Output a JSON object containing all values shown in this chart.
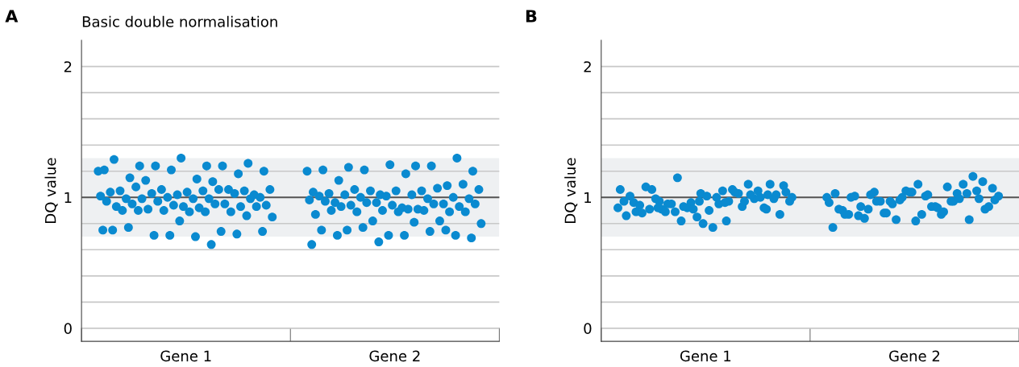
{
  "chart_data": [
    {
      "type": "scatter",
      "title": "Basic double normalisation",
      "ylabel": "DQ value",
      "annotations": [
        "A"
      ],
      "categories": [
        "Gene 1",
        "Gene 2"
      ],
      "ylim": [
        -0.1,
        2.2
      ],
      "yticks": [
        {
          "value": 0,
          "label": "0"
        },
        {
          "value": 0.2,
          "label": null
        },
        {
          "value": 0.4,
          "label": null
        },
        {
          "value": 0.6,
          "label": null
        },
        {
          "value": 0.8,
          "label": null
        },
        {
          "value": 1,
          "label": "1"
        },
        {
          "value": 1.2,
          "label": null
        },
        {
          "value": 1.4,
          "label": null
        },
        {
          "value": 1.6,
          "label": null
        },
        {
          "value": 1.8,
          "label": null
        },
        {
          "value": 2,
          "label": "2"
        }
      ],
      "grid": "y",
      "marker": "circle",
      "bands": [
        {
          "axis": "y",
          "from": 0.7,
          "to": 1.3,
          "color": "#eef0f2"
        }
      ],
      "ref_lines": [
        {
          "axis": "y",
          "value": 1,
          "color": "#555555"
        }
      ],
      "series": [
        {
          "color": "#0a8ad0",
          "x": [
            "Gene 1",
            "Gene 1",
            "Gene 1",
            "Gene 1",
            "Gene 1",
            "Gene 1",
            "Gene 1",
            "Gene 1",
            "Gene 1",
            "Gene 1",
            "Gene 1",
            "Gene 1",
            "Gene 1",
            "Gene 1",
            "Gene 1",
            "Gene 1",
            "Gene 1",
            "Gene 1",
            "Gene 1",
            "Gene 1",
            "Gene 1",
            "Gene 1",
            "Gene 1",
            "Gene 1",
            "Gene 1",
            "Gene 1",
            "Gene 1",
            "Gene 1",
            "Gene 1",
            "Gene 1",
            "Gene 1",
            "Gene 1",
            "Gene 1",
            "Gene 1",
            "Gene 1",
            "Gene 1",
            "Gene 1",
            "Gene 1",
            "Gene 1",
            "Gene 1",
            "Gene 1",
            "Gene 1",
            "Gene 1",
            "Gene 1",
            "Gene 1",
            "Gene 1",
            "Gene 1",
            "Gene 1",
            "Gene 1",
            "Gene 1",
            "Gene 1",
            "Gene 1",
            "Gene 1",
            "Gene 1",
            "Gene 1",
            "Gene 1",
            "Gene 1",
            "Gene 1",
            "Gene 1",
            "Gene 1",
            "Gene 1",
            "Gene 1",
            "Gene 1",
            "Gene 1",
            "Gene 1",
            "Gene 1",
            "Gene 1",
            "Gene 1",
            "Gene 1",
            "Gene 1",
            "Gene 2",
            "Gene 2",
            "Gene 2",
            "Gene 2",
            "Gene 2",
            "Gene 2",
            "Gene 2",
            "Gene 2",
            "Gene 2",
            "Gene 2",
            "Gene 2",
            "Gene 2",
            "Gene 2",
            "Gene 2",
            "Gene 2",
            "Gene 2",
            "Gene 2",
            "Gene 2",
            "Gene 2",
            "Gene 2",
            "Gene 2",
            "Gene 2",
            "Gene 2",
            "Gene 2",
            "Gene 2",
            "Gene 2",
            "Gene 2",
            "Gene 2",
            "Gene 2",
            "Gene 2",
            "Gene 2",
            "Gene 2",
            "Gene 2",
            "Gene 2",
            "Gene 2",
            "Gene 2",
            "Gene 2",
            "Gene 2",
            "Gene 2",
            "Gene 2",
            "Gene 2",
            "Gene 2",
            "Gene 2",
            "Gene 2",
            "Gene 2",
            "Gene 2",
            "Gene 2",
            "Gene 2",
            "Gene 2",
            "Gene 2",
            "Gene 2",
            "Gene 2",
            "Gene 2",
            "Gene 2",
            "Gene 2",
            "Gene 2",
            "Gene 2",
            "Gene 2",
            "Gene 2",
            "Gene 2",
            "Gene 2",
            "Gene 2",
            "Gene 2",
            "Gene 2",
            "Gene 2",
            "Gene 2",
            "Gene 2",
            "Gene 2",
            "Gene 2"
          ],
          "values": [
            1.2,
            1.24,
            1.24,
            1.26,
            1.3,
            1.29,
            1.24,
            1.24,
            1.2,
            1.14,
            1.15,
            1.18,
            1.21,
            1.21,
            1.12,
            1.13,
            1.02,
            1.04,
            1.05,
            1.06,
            1.06,
            1.06,
            1.05,
            1.08,
            1.05,
            1.02,
            1.04,
            1.06,
            1.03,
            1.0,
            0.99,
            0.99,
            1.03,
            1.0,
            1.01,
            0.99,
            0.99,
            0.99,
            0.93,
            0.93,
            0.95,
            0.97,
            0.94,
            0.92,
            0.95,
            0.93,
            0.94,
            0.97,
            0.95,
            0.91,
            0.93,
            0.89,
            0.9,
            0.89,
            0.9,
            0.85,
            0.89,
            0.9,
            0.86,
            0.82,
            0.75,
            0.74,
            0.71,
            0.74,
            0.7,
            0.77,
            0.72,
            0.71,
            0.75,
            0.64,
            1.2,
            1.24,
            1.23,
            1.3,
            1.25,
            1.21,
            1.24,
            1.21,
            1.2,
            1.18,
            1.13,
            1.09,
            1.02,
            1.04,
            1.05,
            1.06,
            1.1,
            1.05,
            1.03,
            1.07,
            1.05,
            1.06,
            1.02,
            1.02,
            1.0,
            1.01,
            1.01,
            0.99,
            1.0,
            0.99,
            0.92,
            0.96,
            0.95,
            0.96,
            0.98,
            0.91,
            0.94,
            0.93,
            0.94,
            0.97,
            0.95,
            0.96,
            0.95,
            0.91,
            0.93,
            0.89,
            0.9,
            0.87,
            0.9,
            0.89,
            0.89,
            0.89,
            0.9,
            0.82,
            0.82,
            0.8,
            0.81,
            0.75,
            0.71,
            0.71,
            0.75,
            0.74,
            0.77,
            0.69,
            0.71,
            0.71,
            0.75,
            0.66,
            0.64
          ]
        }
      ]
    },
    {
      "type": "scatter",
      "ylabel": "DQ value",
      "annotations": [
        "B"
      ],
      "categories": [
        "Gene 1",
        "Gene 2"
      ],
      "ylim": [
        -0.1,
        2.2
      ],
      "yticks": [
        {
          "value": 0,
          "label": "0"
        },
        {
          "value": 0.2,
          "label": null
        },
        {
          "value": 0.4,
          "label": null
        },
        {
          "value": 0.6,
          "label": null
        },
        {
          "value": 0.8,
          "label": null
        },
        {
          "value": 1,
          "label": "1"
        },
        {
          "value": 1.2,
          "label": null
        },
        {
          "value": 1.4,
          "label": null
        },
        {
          "value": 1.6,
          "label": null
        },
        {
          "value": 1.8,
          "label": null
        },
        {
          "value": 2,
          "label": "2"
        }
      ],
      "grid": "y",
      "marker": "circle",
      "bands": [
        {
          "axis": "y",
          "from": 0.7,
          "to": 1.3,
          "color": "#eef0f2"
        }
      ],
      "ref_lines": [
        {
          "axis": "y",
          "value": 1,
          "color": "#555555"
        }
      ],
      "series": [
        {
          "color": "#0a8ad0",
          "x": [
            "Gene 1",
            "Gene 1",
            "Gene 1",
            "Gene 1",
            "Gene 1",
            "Gene 1",
            "Gene 1",
            "Gene 1",
            "Gene 1",
            "Gene 1",
            "Gene 1",
            "Gene 1",
            "Gene 1",
            "Gene 1",
            "Gene 1",
            "Gene 1",
            "Gene 1",
            "Gene 1",
            "Gene 1",
            "Gene 1",
            "Gene 1",
            "Gene 1",
            "Gene 1",
            "Gene 1",
            "Gene 1",
            "Gene 1",
            "Gene 1",
            "Gene 1",
            "Gene 1",
            "Gene 1",
            "Gene 1",
            "Gene 1",
            "Gene 1",
            "Gene 1",
            "Gene 1",
            "Gene 1",
            "Gene 1",
            "Gene 1",
            "Gene 1",
            "Gene 1",
            "Gene 1",
            "Gene 1",
            "Gene 1",
            "Gene 1",
            "Gene 1",
            "Gene 1",
            "Gene 1",
            "Gene 1",
            "Gene 1",
            "Gene 1",
            "Gene 1",
            "Gene 1",
            "Gene 1",
            "Gene 1",
            "Gene 1",
            "Gene 1",
            "Gene 1",
            "Gene 1",
            "Gene 1",
            "Gene 1",
            "Gene 2",
            "Gene 2",
            "Gene 2",
            "Gene 2",
            "Gene 2",
            "Gene 2",
            "Gene 2",
            "Gene 2",
            "Gene 2",
            "Gene 2",
            "Gene 2",
            "Gene 2",
            "Gene 2",
            "Gene 2",
            "Gene 2",
            "Gene 2",
            "Gene 2",
            "Gene 2",
            "Gene 2",
            "Gene 2",
            "Gene 2",
            "Gene 2",
            "Gene 2",
            "Gene 2",
            "Gene 2",
            "Gene 2",
            "Gene 2",
            "Gene 2",
            "Gene 2",
            "Gene 2",
            "Gene 2",
            "Gene 2",
            "Gene 2",
            "Gene 2",
            "Gene 2",
            "Gene 2",
            "Gene 2",
            "Gene 2",
            "Gene 2",
            "Gene 2",
            "Gene 2",
            "Gene 2",
            "Gene 2",
            "Gene 2",
            "Gene 2",
            "Gene 2",
            "Gene 2",
            "Gene 2",
            "Gene 2",
            "Gene 2",
            "Gene 2",
            "Gene 2",
            "Gene 2",
            "Gene 2",
            "Gene 2"
          ],
          "values": [
            0.92,
            0.82,
            0.97,
            1.02,
            1.03,
            0.96,
            0.93,
            0.89,
            1.09,
            1.0,
            0.91,
            1.05,
            0.96,
            0.97,
            1.06,
            0.89,
            0.99,
            1.01,
            0.94,
            1.1,
            0.82,
            0.97,
            1.05,
            0.99,
            0.92,
            0.85,
            1.01,
            1.03,
            0.95,
            0.87,
            0.77,
            1.08,
            0.99,
            0.92,
            1.06,
            0.97,
            0.91,
            1.1,
            0.8,
            0.89,
            0.97,
            1.15,
            1.04,
            0.95,
            1.06,
            1.0,
            0.91,
            0.86,
            1.04,
            0.95,
            1.02,
            0.9,
            0.88,
            1.02,
            0.93,
            1.0,
            0.96,
            0.92,
            0.91,
            0.97,
            1.0,
            0.93,
            0.91,
            1.05,
            1.04,
            0.9,
            0.97,
            0.88,
            1.07,
            1.01,
            0.86,
            1.03,
            0.98,
            0.77,
            0.87,
            1.04,
            1.12,
            0.82,
            0.87,
            1.03,
            0.97,
            1.01,
            0.93,
            0.84,
            1.16,
            1.05,
            0.91,
            1.08,
            0.97,
            0.93,
            0.87,
            1.01,
            1.1,
            0.83,
            0.96,
            0.92,
            1.02,
            0.99,
            1.04,
            0.87,
            0.97,
            0.88,
            0.98,
            1.02,
            0.93,
            0.83,
            1.0,
            1.03,
            0.89,
            0.97,
            0.91,
            1.1,
            1.0,
            0.99,
            0.95
          ]
        }
      ]
    }
  ]
}
